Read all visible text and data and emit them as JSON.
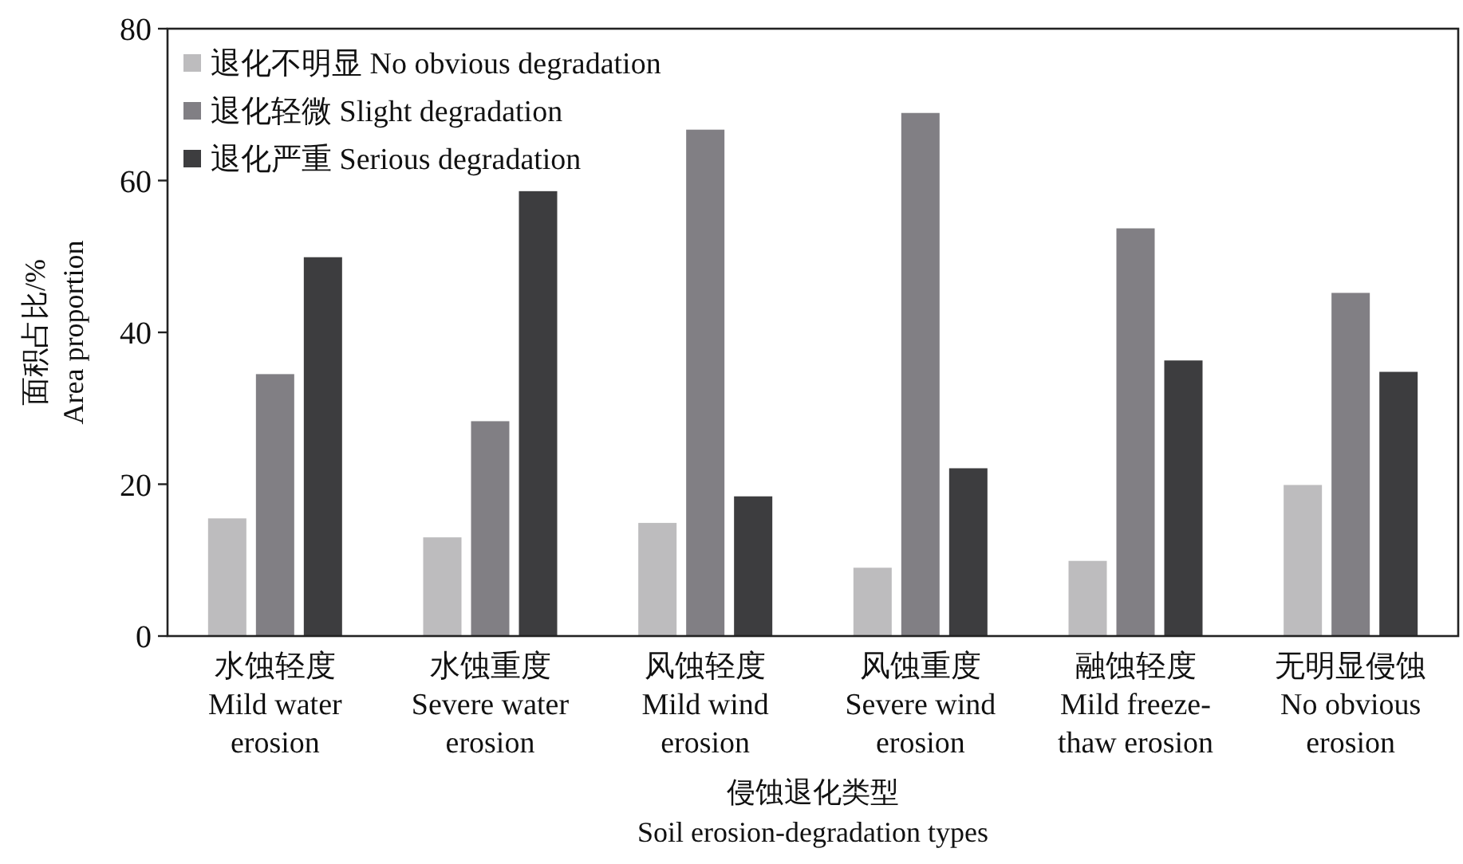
{
  "chart_data": {
    "type": "bar",
    "categories": [
      "水蚀轻度\nMild water\nerosion",
      "水蚀重度\nSevere water\nerosion",
      "风蚀轻度\nMild wind\nerosion",
      "风蚀重度\nSevere wind\nerosion",
      "融蚀轻度\nMild freeze-\nthaw erosion",
      "无明显侵蚀\nNo obvious\nerosion"
    ],
    "series": [
      {
        "name": "退化不明显 No obvious degradation",
        "color": "#bdbcbe",
        "values": [
          15.5,
          13.0,
          14.9,
          9.0,
          9.9,
          19.9
        ]
      },
      {
        "name": "退化轻微 Slight degradation",
        "color": "#817f84",
        "values": [
          34.5,
          28.3,
          66.7,
          68.9,
          53.7,
          45.2
        ]
      },
      {
        "name": "退化严重 Serious degradation",
        "color": "#3d3d3f",
        "values": [
          49.9,
          58.6,
          18.4,
          22.1,
          36.3,
          34.8
        ]
      }
    ],
    "ylim": [
      0,
      80
    ],
    "yticks": [
      0,
      20,
      40,
      60,
      80
    ],
    "xlabel": "侵蚀退化类型\nSoil erosion-degradation types",
    "ylabel": "面积占比/%\nArea proportion",
    "legend": "top left"
  }
}
